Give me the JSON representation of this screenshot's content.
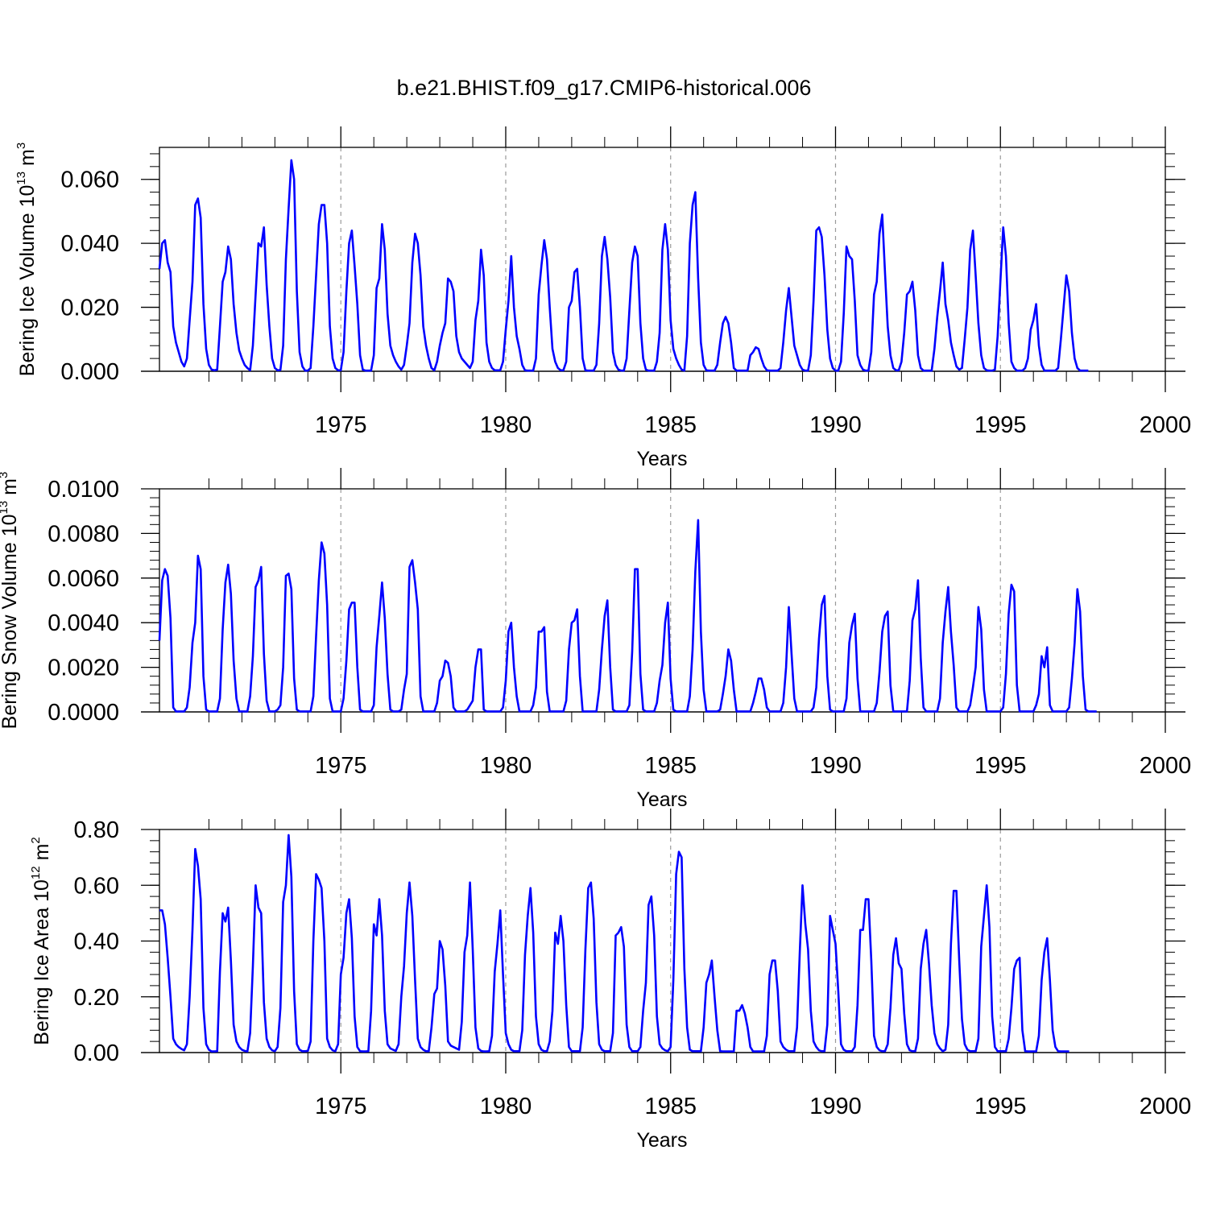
{
  "title": "b.e21.BHIST.f09_g17.CMIP6-historical.006",
  "line_color": "#0000ff",
  "chart_data": [
    {
      "type": "line",
      "name": "ice-volume",
      "ylabel_main": "Bering Ice Volume 10",
      "ylabel_exp": "13",
      "ylabel_unit": "m",
      "ylabel_unit_exp": "3",
      "xlabel": "Years",
      "xlim": [
        1969.5,
        2000
      ],
      "ylim": [
        0,
        0.07
      ],
      "yticks": [
        0,
        0.02,
        0.04,
        0.06
      ],
      "ytick_labels": [
        "0.000",
        "0.020",
        "0.040",
        "0.060"
      ],
      "xticks": [
        1975,
        1980,
        1985,
        1990,
        1995,
        2000
      ],
      "xtick_labels": [
        "1975",
        "1980",
        "1985",
        "1990",
        "1995",
        "2000"
      ],
      "x_start": 1969.5,
      "x_step": 0.083333,
      "values": [
        0.032,
        0.04,
        0.041,
        0.034,
        0.031,
        0.014,
        0.009,
        0.006,
        0.003,
        0.0015,
        0.004,
        0.016,
        0.028,
        0.052,
        0.054,
        0.048,
        0.021,
        0.007,
        0.002,
        0.0005,
        0.0003,
        0.0005,
        0.014,
        0.028,
        0.031,
        0.039,
        0.035,
        0.021,
        0.012,
        0.0065,
        0.004,
        0.002,
        0.001,
        0.0003,
        0.008,
        0.024,
        0.04,
        0.039,
        0.045,
        0.027,
        0.014,
        0.004,
        0.001,
        0.0003,
        0.0004,
        0.008,
        0.035,
        0.051,
        0.066,
        0.06,
        0.025,
        0.006,
        0.0015,
        0.0002,
        0.0002,
        0.001,
        0.014,
        0.03,
        0.046,
        0.052,
        0.052,
        0.04,
        0.014,
        0.004,
        0.001,
        0.0003,
        0.0003,
        0.006,
        0.025,
        0.04,
        0.044,
        0.033,
        0.021,
        0.005,
        0.0005,
        0.0002,
        0.0002,
        0.0002,
        0.005,
        0.026,
        0.029,
        0.046,
        0.038,
        0.018,
        0.008,
        0.005,
        0.003,
        0.0015,
        0.0005,
        0.002,
        0.008,
        0.015,
        0.034,
        0.043,
        0.04,
        0.03,
        0.014,
        0.008,
        0.004,
        0.001,
        0.0003,
        0.003,
        0.008,
        0.012,
        0.015,
        0.029,
        0.028,
        0.025,
        0.011,
        0.006,
        0.004,
        0.003,
        0.002,
        0.001,
        0.003,
        0.016,
        0.022,
        0.038,
        0.03,
        0.009,
        0.003,
        0.001,
        0.0003,
        0.0003,
        0.0003,
        0.003,
        0.013,
        0.022,
        0.036,
        0.02,
        0.011,
        0.007,
        0.002,
        0.0003,
        0.0002,
        0.0002,
        0.0002,
        0.004,
        0.024,
        0.033,
        0.041,
        0.035,
        0.02,
        0.007,
        0.003,
        0.001,
        0.0003,
        0.0003,
        0.003,
        0.02,
        0.022,
        0.031,
        0.032,
        0.02,
        0.004,
        0.0003,
        0.0002,
        0.0002,
        0.0002,
        0.002,
        0.015,
        0.036,
        0.042,
        0.035,
        0.023,
        0.006,
        0.002,
        0.0005,
        0.0002,
        0.0002,
        0.004,
        0.019,
        0.034,
        0.039,
        0.036,
        0.015,
        0.004,
        0.0005,
        0.0002,
        0.0002,
        0.0002,
        0.003,
        0.012,
        0.038,
        0.046,
        0.038,
        0.016,
        0.007,
        0.004,
        0.002,
        0.0005,
        0.0002,
        0.011,
        0.04,
        0.052,
        0.056,
        0.029,
        0.009,
        0.002,
        0.0003,
        0.0002,
        0.0002,
        0.0002,
        0.002,
        0.009,
        0.015,
        0.017,
        0.015,
        0.009,
        0.001,
        0.0002,
        0.0002,
        0.0002,
        0.0002,
        0.0002,
        0.005,
        0.006,
        0.0075,
        0.007,
        0.004,
        0.0015,
        0.0003,
        0.0002,
        0.0002,
        0.0002,
        0.0002,
        0.001,
        0.009,
        0.019,
        0.026,
        0.017,
        0.008,
        0.005,
        0.002,
        0.0005,
        0.0002,
        0.0002,
        0.005,
        0.022,
        0.044,
        0.045,
        0.042,
        0.03,
        0.013,
        0.004,
        0.001,
        0.0002,
        0.0002,
        0.003,
        0.018,
        0.039,
        0.036,
        0.035,
        0.022,
        0.005,
        0.002,
        0.0005,
        0.0002,
        0.0002,
        0.006,
        0.024,
        0.028,
        0.043,
        0.049,
        0.031,
        0.014,
        0.005,
        0.001,
        0.0003,
        0.0003,
        0.003,
        0.012,
        0.024,
        0.025,
        0.028,
        0.019,
        0.005,
        0.001,
        0.0002,
        0.0002,
        0.0002,
        0.0002,
        0.007,
        0.017,
        0.025,
        0.034,
        0.021,
        0.016,
        0.009,
        0.005,
        0.0015,
        0.0005,
        0.001,
        0.01,
        0.02,
        0.038,
        0.044,
        0.03,
        0.015,
        0.005,
        0.001,
        0.0003,
        0.0002,
        0.0002,
        0.0005,
        0.011,
        0.028,
        0.045,
        0.036,
        0.015,
        0.003,
        0.001,
        0.0002,
        0.0002,
        0.0002,
        0.001,
        0.004,
        0.013,
        0.016,
        0.021,
        0.008,
        0.002,
        0.0002,
        0.0002,
        0.0002,
        0.0002,
        0.0002,
        0.001,
        0.01,
        0.02,
        0.03,
        0.025,
        0.012,
        0.004,
        0.001,
        0.0002,
        0.0002,
        0.0002,
        0.0002
      ]
    },
    {
      "type": "line",
      "name": "snow-volume",
      "ylabel_main": "Bering Snow Volume 10",
      "ylabel_exp": "13",
      "ylabel_unit": "m",
      "ylabel_unit_exp": "3",
      "xlabel": "Years",
      "xlim": [
        1969.5,
        2000
      ],
      "ylim": [
        0,
        0.01
      ],
      "yticks": [
        0,
        0.002,
        0.004,
        0.006,
        0.008,
        0.01
      ],
      "ytick_labels": [
        "0.0000",
        "0.0020",
        "0.0040",
        "0.0060",
        "0.0080",
        "0.0100"
      ],
      "xticks": [
        1975,
        1980,
        1985,
        1990,
        1995,
        2000
      ],
      "xtick_labels": [
        "1975",
        "1980",
        "1985",
        "1990",
        "1995",
        "2000"
      ],
      "x_start": 1969.5,
      "x_step": 0.083333,
      "values": [
        0.0032,
        0.0059,
        0.0064,
        0.0061,
        0.0042,
        0.0002,
        2e-05,
        2e-05,
        2e-05,
        2e-05,
        0.0002,
        0.0011,
        0.0031,
        0.004,
        0.007,
        0.0064,
        0.0016,
        0.0001,
        2e-05,
        2e-05,
        2e-05,
        2e-05,
        0.0006,
        0.0037,
        0.0058,
        0.0066,
        0.0053,
        0.0023,
        0.0006,
        2e-05,
        2e-05,
        2e-05,
        2e-05,
        0.0007,
        0.0025,
        0.0056,
        0.0059,
        0.0065,
        0.0026,
        0.0005,
        2e-05,
        2e-05,
        2e-05,
        0.0001,
        0.0003,
        0.002,
        0.0061,
        0.0062,
        0.0055,
        0.0015,
        0.0001,
        2e-05,
        2e-05,
        2e-05,
        2e-05,
        2e-05,
        0.0007,
        0.0034,
        0.0059,
        0.0076,
        0.0071,
        0.0048,
        0.0006,
        2e-05,
        2e-05,
        2e-05,
        2e-05,
        0.0006,
        0.0023,
        0.0046,
        0.0049,
        0.0049,
        0.002,
        0.0001,
        2e-05,
        2e-05,
        2e-05,
        2e-05,
        0.0003,
        0.0029,
        0.0043,
        0.0058,
        0.0042,
        0.0017,
        0.0001,
        2e-05,
        2e-05,
        2e-05,
        0.0001,
        0.001,
        0.0017,
        0.0065,
        0.0068,
        0.0058,
        0.0046,
        0.0007,
        2e-05,
        2e-05,
        2e-05,
        2e-05,
        2e-05,
        0.0004,
        0.0014,
        0.0016,
        0.0023,
        0.0022,
        0.0016,
        0.0002,
        2e-05,
        2e-05,
        2e-05,
        2e-05,
        0.0001,
        0.0003,
        0.0005,
        0.002,
        0.0028,
        0.0028,
        0.0001,
        2e-05,
        2e-05,
        2e-05,
        2e-05,
        2e-05,
        2e-05,
        0.0002,
        0.0014,
        0.0036,
        0.004,
        0.002,
        0.0007,
        2e-05,
        2e-05,
        2e-05,
        2e-05,
        2e-05,
        0.0003,
        0.0011,
        0.0036,
        0.0036,
        0.0038,
        0.0009,
        2e-05,
        2e-05,
        2e-05,
        2e-05,
        2e-05,
        2e-05,
        0.0005,
        0.0028,
        0.004,
        0.0041,
        0.0046,
        0.0016,
        2e-05,
        2e-05,
        2e-05,
        2e-05,
        2e-05,
        2e-05,
        0.001,
        0.0028,
        0.0043,
        0.005,
        0.002,
        0.0001,
        2e-05,
        2e-05,
        2e-05,
        2e-05,
        2e-05,
        0.0003,
        0.0027,
        0.0064,
        0.0064,
        0.0017,
        0.0001,
        2e-05,
        2e-05,
        2e-05,
        2e-05,
        0.0004,
        0.0014,
        0.0021,
        0.004,
        0.0049,
        0.0015,
        0.0001,
        2e-05,
        2e-05,
        2e-05,
        2e-05,
        2e-05,
        0.0007,
        0.0028,
        0.0063,
        0.0086,
        0.0036,
        0.001,
        2e-05,
        2e-05,
        2e-05,
        2e-05,
        2e-05,
        0.0001,
        0.0008,
        0.0016,
        0.0028,
        0.0023,
        0.001,
        2e-05,
        2e-05,
        2e-05,
        2e-05,
        2e-05,
        2e-05,
        0.0004,
        0.0009,
        0.0015,
        0.0015,
        0.001,
        0.0002,
        2e-05,
        2e-05,
        2e-05,
        2e-05,
        2e-05,
        0.0004,
        0.002,
        0.0047,
        0.0026,
        0.0006,
        2e-05,
        2e-05,
        2e-05,
        2e-05,
        2e-05,
        2e-05,
        0.0002,
        0.0011,
        0.0033,
        0.0048,
        0.0052,
        0.0016,
        0.0001,
        2e-05,
        2e-05,
        2e-05,
        2e-05,
        2e-05,
        0.0006,
        0.0031,
        0.0039,
        0.0044,
        0.0015,
        2e-05,
        2e-05,
        2e-05,
        2e-05,
        2e-05,
        2e-05,
        0.0004,
        0.0018,
        0.0036,
        0.0043,
        0.0045,
        0.0012,
        2e-05,
        2e-05,
        2e-05,
        2e-05,
        2e-05,
        2e-05,
        0.0014,
        0.0041,
        0.0046,
        0.0059,
        0.0024,
        0.0002,
        2e-05,
        2e-05,
        2e-05,
        2e-05,
        2e-05,
        0.0006,
        0.0031,
        0.0045,
        0.0056,
        0.0036,
        0.0021,
        0.0002,
        2e-05,
        2e-05,
        2e-05,
        2e-05,
        0.0003,
        0.0011,
        0.002,
        0.0047,
        0.0037,
        0.001,
        2e-05,
        2e-05,
        2e-05,
        2e-05,
        2e-05,
        2e-05,
        0.0002,
        0.0017,
        0.0044,
        0.0057,
        0.0054,
        0.0012,
        2e-05,
        2e-05,
        2e-05,
        2e-05,
        2e-05,
        2e-05,
        0.0003,
        0.0008,
        0.0025,
        0.002,
        0.0029,
        0.0003,
        2e-05,
        2e-05,
        2e-05,
        2e-05,
        2e-05,
        2e-05,
        0.0002,
        0.0015,
        0.0031,
        0.0055,
        0.0045,
        0.0016,
        0.0001,
        2e-05,
        2e-05,
        2e-05,
        2e-05
      ]
    },
    {
      "type": "line",
      "name": "ice-area",
      "ylabel_main": "Bering Ice Area 10",
      "ylabel_exp": "12",
      "ylabel_unit": "m",
      "ylabel_unit_exp": "2",
      "xlabel": "Years",
      "xlim": [
        1969.5,
        2000
      ],
      "ylim": [
        0,
        0.8
      ],
      "yticks": [
        0,
        0.2,
        0.4,
        0.6,
        0.8
      ],
      "ytick_labels": [
        "0.00",
        "0.20",
        "0.40",
        "0.60",
        "0.80"
      ],
      "xticks": [
        1975,
        1980,
        1985,
        1990,
        1995,
        2000
      ],
      "xtick_labels": [
        "1975",
        "1980",
        "1985",
        "1990",
        "1995",
        "2000"
      ],
      "x_start": 1969.5,
      "x_step": 0.083333,
      "values": [
        0.51,
        0.51,
        0.46,
        0.34,
        0.2,
        0.05,
        0.03,
        0.02,
        0.013,
        0.008,
        0.03,
        0.2,
        0.44,
        0.73,
        0.67,
        0.55,
        0.16,
        0.03,
        0.01,
        0.004,
        0.004,
        0.005,
        0.29,
        0.5,
        0.47,
        0.52,
        0.33,
        0.1,
        0.04,
        0.02,
        0.01,
        0.006,
        0.004,
        0.07,
        0.31,
        0.6,
        0.52,
        0.5,
        0.18,
        0.05,
        0.02,
        0.008,
        0.005,
        0.02,
        0.16,
        0.54,
        0.6,
        0.78,
        0.63,
        0.22,
        0.03,
        0.01,
        0.005,
        0.005,
        0.006,
        0.04,
        0.4,
        0.64,
        0.62,
        0.59,
        0.4,
        0.05,
        0.02,
        0.008,
        0.005,
        0.03,
        0.28,
        0.34,
        0.5,
        0.55,
        0.41,
        0.13,
        0.02,
        0.005,
        0.004,
        0.004,
        0.005,
        0.15,
        0.46,
        0.42,
        0.55,
        0.42,
        0.15,
        0.03,
        0.015,
        0.01,
        0.006,
        0.03,
        0.2,
        0.31,
        0.5,
        0.61,
        0.49,
        0.26,
        0.05,
        0.02,
        0.01,
        0.005,
        0.005,
        0.09,
        0.21,
        0.23,
        0.4,
        0.37,
        0.24,
        0.04,
        0.025,
        0.02,
        0.015,
        0.01,
        0.11,
        0.36,
        0.42,
        0.61,
        0.37,
        0.09,
        0.015,
        0.006,
        0.004,
        0.004,
        0.005,
        0.06,
        0.29,
        0.39,
        0.51,
        0.28,
        0.07,
        0.03,
        0.01,
        0.005,
        0.005,
        0.005,
        0.08,
        0.35,
        0.49,
        0.59,
        0.43,
        0.13,
        0.03,
        0.01,
        0.005,
        0.005,
        0.04,
        0.15,
        0.43,
        0.39,
        0.49,
        0.4,
        0.17,
        0.02,
        0.005,
        0.005,
        0.005,
        0.005,
        0.09,
        0.37,
        0.59,
        0.61,
        0.48,
        0.18,
        0.03,
        0.01,
        0.005,
        0.005,
        0.005,
        0.07,
        0.42,
        0.43,
        0.45,
        0.38,
        0.1,
        0.02,
        0.005,
        0.005,
        0.005,
        0.02,
        0.15,
        0.25,
        0.53,
        0.56,
        0.42,
        0.13,
        0.03,
        0.015,
        0.008,
        0.005,
        0.02,
        0.26,
        0.64,
        0.72,
        0.7,
        0.3,
        0.09,
        0.01,
        0.005,
        0.005,
        0.005,
        0.005,
        0.09,
        0.25,
        0.28,
        0.33,
        0.2,
        0.08,
        0.005,
        0.004,
        0.004,
        0.004,
        0.004,
        0.004,
        0.15,
        0.15,
        0.17,
        0.14,
        0.09,
        0.02,
        0.004,
        0.004,
        0.004,
        0.004,
        0.004,
        0.06,
        0.28,
        0.33,
        0.33,
        0.22,
        0.04,
        0.02,
        0.01,
        0.005,
        0.005,
        0.005,
        0.09,
        0.36,
        0.6,
        0.46,
        0.37,
        0.15,
        0.04,
        0.02,
        0.008,
        0.005,
        0.005,
        0.1,
        0.49,
        0.44,
        0.39,
        0.22,
        0.03,
        0.01,
        0.005,
        0.005,
        0.005,
        0.02,
        0.17,
        0.44,
        0.44,
        0.55,
        0.55,
        0.33,
        0.06,
        0.02,
        0.008,
        0.005,
        0.005,
        0.03,
        0.16,
        0.35,
        0.41,
        0.32,
        0.3,
        0.14,
        0.03,
        0.008,
        0.005,
        0.005,
        0.05,
        0.3,
        0.39,
        0.44,
        0.32,
        0.17,
        0.07,
        0.03,
        0.015,
        0.005,
        0.01,
        0.1,
        0.39,
        0.58,
        0.58,
        0.33,
        0.12,
        0.03,
        0.01,
        0.005,
        0.005,
        0.005,
        0.05,
        0.38,
        0.49,
        0.6,
        0.45,
        0.13,
        0.02,
        0.005,
        0.005,
        0.005,
        0.005,
        0.05,
        0.16,
        0.3,
        0.33,
        0.34,
        0.08,
        0.005,
        0.004,
        0.004,
        0.004,
        0.004,
        0.06,
        0.26,
        0.36,
        0.41,
        0.26,
        0.08,
        0.02,
        0.005,
        0.004,
        0.004,
        0.004,
        0.004
      ]
    }
  ]
}
